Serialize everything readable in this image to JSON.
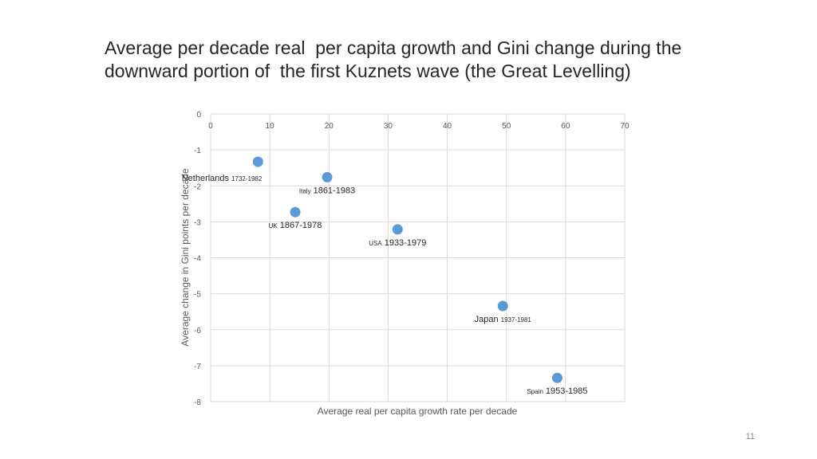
{
  "slide": {
    "title_lines": [
      "Average per decade real  per capita growth and Gini change during the",
      "downward portion of  the first Kuznets wave (the Great Levelling)"
    ],
    "page_number": "11"
  },
  "colors": {
    "marker": "#5b9bd5",
    "grid": "#d9d9d9",
    "tick_text": "#595959",
    "axis_title": "#595959"
  },
  "chart_data": {
    "type": "scatter",
    "title": "",
    "xlabel": "Average real per capita growth rate per decade",
    "ylabel": "Average change in Gini points per decade",
    "xlim": [
      0,
      70
    ],
    "ylim": [
      -8,
      0
    ],
    "x_ticks": [
      0,
      10,
      20,
      30,
      40,
      50,
      60,
      70
    ],
    "y_ticks": [
      0,
      -1,
      -2,
      -3,
      -4,
      -5,
      -6,
      -7,
      -8
    ],
    "grid": true,
    "x_axis_position": "top",
    "points": [
      {
        "x": 8.0,
        "y": -1.33,
        "country": "Netherlands",
        "years": "1732-1982",
        "label_pos": "below-left"
      },
      {
        "x": 19.7,
        "y": -1.76,
        "country": "Italy",
        "years": "1861-1983",
        "label_pos": "below"
      },
      {
        "x": 14.3,
        "y": -2.73,
        "country": "UK",
        "years": "1867-1978",
        "label_pos": "below"
      },
      {
        "x": 31.6,
        "y": -3.21,
        "country": "USA",
        "years": "1933-1979",
        "label_pos": "below"
      },
      {
        "x": 49.4,
        "y": -5.34,
        "country": "Japan",
        "years": "1937-1981",
        "label_pos": "below"
      },
      {
        "x": 58.6,
        "y": -7.34,
        "country": "Spain",
        "years": "1953-1985",
        "label_pos": "below"
      }
    ]
  }
}
